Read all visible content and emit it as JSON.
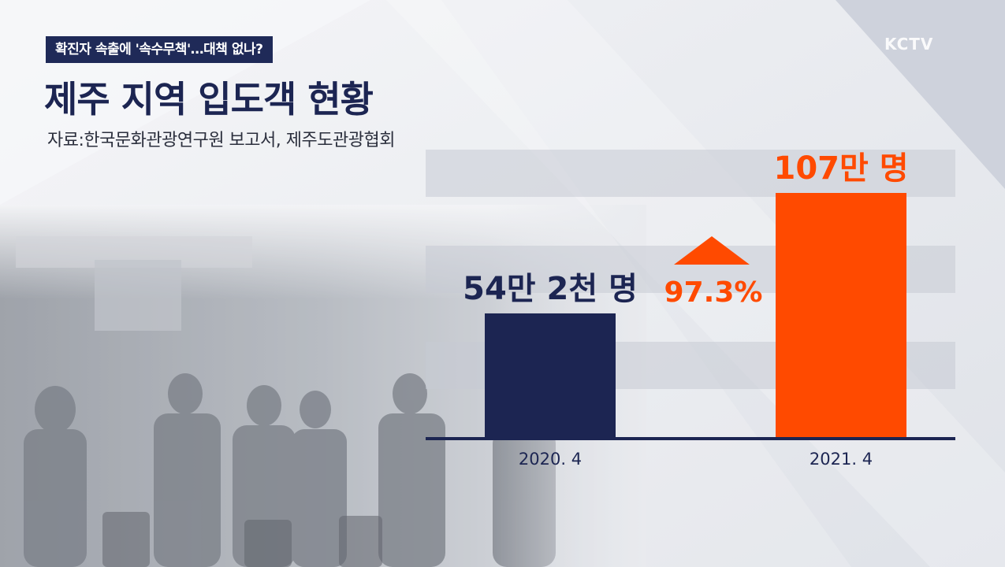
{
  "header": {
    "news_tag": "확진자 속출에 '속수무책'…대책 없나?",
    "title": "제주 지역 입도객 현황",
    "source": "자료:한국문화관광연구원 보고서, 제주도관광협회",
    "logo": "KCTV"
  },
  "colors": {
    "navy": "#1c2552",
    "orange": "#ff4a00",
    "axis": "#1c2552"
  },
  "chart_data": {
    "type": "bar",
    "categories": [
      "2020. 4",
      "2021. 4"
    ],
    "values": [
      542000,
      1070000
    ],
    "value_labels": [
      "54만 2천 명",
      "107만 명"
    ],
    "bar_colors": [
      "#1c2552",
      "#ff4a00"
    ],
    "change_label": "97.3%",
    "change_direction": "up",
    "title": "",
    "xlabel": "",
    "ylabel": "",
    "grid": true
  }
}
